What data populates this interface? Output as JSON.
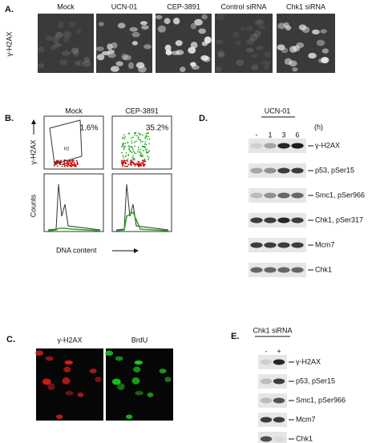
{
  "panel_a": {
    "label": "A.",
    "row_label": "γ-H2AX",
    "columns": [
      "Mock",
      "UCN-01",
      "CEP-3891",
      "Control siRNA",
      "Chk1 siRNA"
    ]
  },
  "panel_b": {
    "label": "B.",
    "columns": [
      "Mock",
      "CEP-3891"
    ],
    "percentages": [
      "1.6%",
      "35.2%"
    ],
    "gate": "R2",
    "y_label_top": "γ-H2AX",
    "y_label_bottom": "Counts",
    "x_label": "DNA content"
  },
  "panel_c": {
    "label": "C.",
    "channels": [
      "γ-H2AX",
      "BrdU"
    ]
  },
  "panel_d": {
    "label": "D.",
    "treatment": "UCN-01",
    "lanes": [
      "-",
      "1",
      "3",
      "6"
    ],
    "unit": "(h)",
    "bands": [
      "γ-H2AX",
      "p53, pSer15",
      "Smc1, pSer966",
      "Chk1, pSer317",
      "Mcm7",
      "Chk1"
    ]
  },
  "panel_e": {
    "label": "E.",
    "treatment": "Chk1 siRNA",
    "lanes": [
      "-",
      "+"
    ],
    "bands": [
      "γ-H2AX",
      "p53, pSer15",
      "Smc1, pSer966",
      "Mcm7",
      "Chk1"
    ]
  }
}
